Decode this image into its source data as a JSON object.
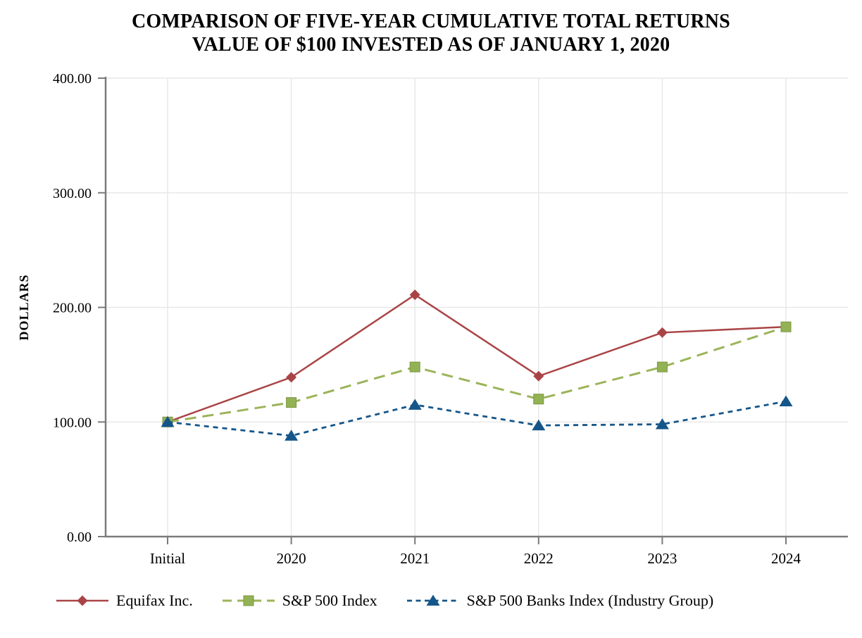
{
  "title": {
    "line1": "COMPARISON OF FIVE-YEAR CUMULATIVE TOTAL RETURNS",
    "line2": "VALUE OF $100 INVESTED AS OF JANUARY 1, 2020"
  },
  "chart_data": {
    "type": "line",
    "categories": [
      "Initial",
      "2020",
      "2021",
      "2022",
      "2023",
      "2024"
    ],
    "series": [
      {
        "name": "Equifax Inc.",
        "values": [
          100,
          139,
          211,
          140,
          178,
          183
        ],
        "color": "#A94446",
        "marker": "diamond",
        "dash": "solid",
        "line_width": 2.5
      },
      {
        "name": "S&P 500 Index",
        "values": [
          100,
          117,
          148,
          120,
          148,
          183
        ],
        "color": "#9BB45A",
        "marker": "square",
        "marker_fill": "#92B254",
        "marker_border": "#7C9743",
        "dash": "long-dash",
        "line_width": 3
      },
      {
        "name": "S&P 500 Banks Index (Industry Group)",
        "values": [
          100,
          88,
          115,
          97,
          98,
          118
        ],
        "color": "#15568A",
        "marker": "triangle",
        "dash": "short-dash",
        "line_width": 2.8
      }
    ],
    "xlabel": "",
    "ylabel": "DOLLARS",
    "ylim": [
      0,
      400
    ],
    "ytick_step": 100,
    "ytick_labels": [
      "0.00",
      "100.00",
      "200.00",
      "300.00",
      "400.00"
    ],
    "grid": true,
    "legend_position": "bottom"
  },
  "colors": {
    "gridline": "#E8E8E8",
    "axis": "#7B7B7B",
    "text": "#000000",
    "background": "#FFFFFF"
  }
}
